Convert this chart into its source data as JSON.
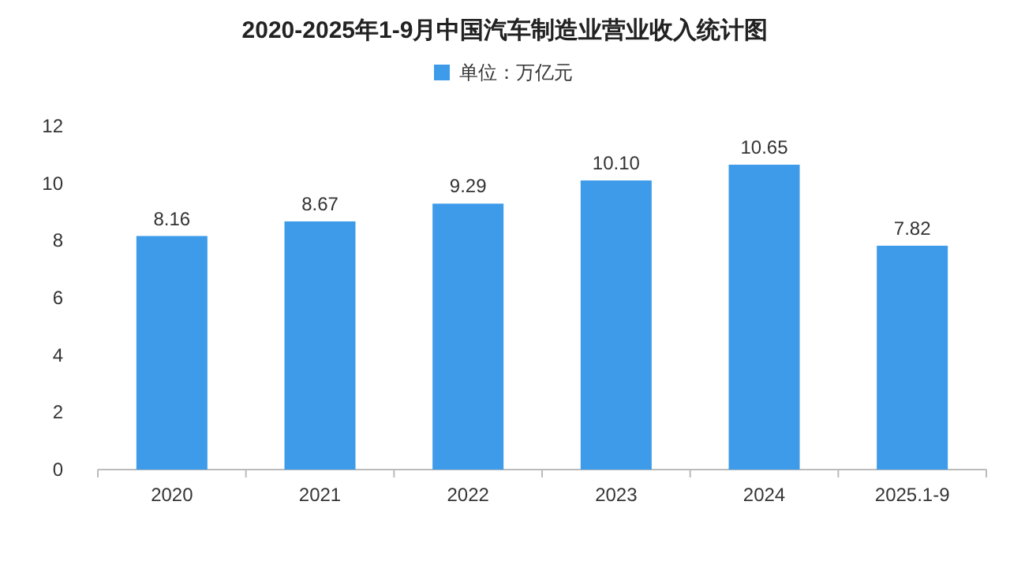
{
  "chart_data": {
    "type": "bar",
    "title": "2020-2025年1-9月中国汽车制造业营业收入统计图",
    "categories": [
      "2020",
      "2021",
      "2022",
      "2023",
      "2024",
      "2025.1-9"
    ],
    "series": [
      {
        "name": "单位：万亿元",
        "color": "#3d9be9",
        "values": [
          8.16,
          8.67,
          9.29,
          10.1,
          10.65,
          7.82
        ],
        "value_labels": [
          "8.16",
          "8.67",
          "9.29",
          "10.10",
          "10.65",
          "7.82"
        ]
      }
    ],
    "ylim": [
      0,
      12
    ],
    "yticks": [
      0,
      2,
      4,
      6,
      8,
      10,
      12
    ],
    "legend": "top",
    "grid": false
  }
}
